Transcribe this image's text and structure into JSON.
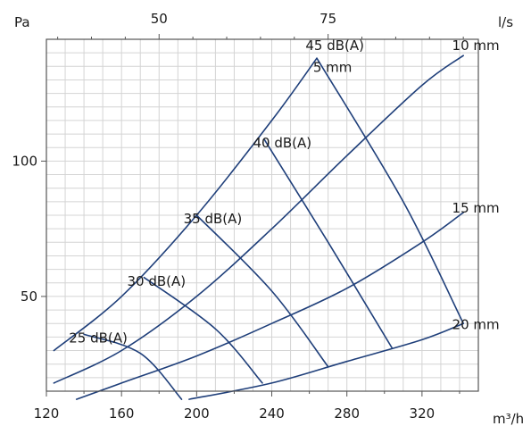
{
  "chart_data": {
    "type": "line",
    "title": "",
    "xlabel": "m³/h",
    "ylabel": "Pa",
    "x2label": "l/s",
    "x_range": [
      120,
      350
    ],
    "y_range": [
      15,
      145
    ],
    "x_ticks": [
      120,
      160,
      200,
      240,
      280,
      320
    ],
    "y_ticks": [
      50,
      100
    ],
    "x2_ticks": [
      50,
      75
    ],
    "grid": true,
    "line_color": "#1f3f7a",
    "pressure_curves": [
      {
        "name": "5 mm",
        "points": [
          [
            124,
            30
          ],
          [
            160,
            50
          ],
          [
            200,
            80
          ],
          [
            240,
            115
          ],
          [
            264,
            138
          ]
        ]
      },
      {
        "name": "10 mm",
        "points": [
          [
            124,
            18
          ],
          [
            160,
            30
          ],
          [
            200,
            50
          ],
          [
            240,
            75
          ],
          [
            280,
            102
          ],
          [
            320,
            128
          ],
          [
            342,
            139
          ]
        ]
      },
      {
        "name": "15 mm",
        "points": [
          [
            136,
            12
          ],
          [
            160,
            18
          ],
          [
            200,
            28
          ],
          [
            240,
            40
          ],
          [
            280,
            53
          ],
          [
            320,
            70
          ],
          [
            342,
            81
          ]
        ]
      },
      {
        "name": "20 mm",
        "points": [
          [
            196,
            12
          ],
          [
            240,
            18
          ],
          [
            280,
            26
          ],
          [
            320,
            34
          ],
          [
            342,
            40
          ]
        ]
      }
    ],
    "sound_curves": [
      {
        "name": "25 dB(A)",
        "points": [
          [
            140,
            36
          ],
          [
            170,
            29
          ],
          [
            192,
            12
          ]
        ]
      },
      {
        "name": "30 dB(A)",
        "points": [
          [
            172,
            57
          ],
          [
            210,
            38
          ],
          [
            235,
            18
          ]
        ]
      },
      {
        "name": "35 dB(A)",
        "points": [
          [
            200,
            80
          ],
          [
            240,
            52
          ],
          [
            270,
            24
          ]
        ]
      },
      {
        "name": "40 dB(A)",
        "points": [
          [
            236,
            108
          ],
          [
            270,
            70
          ],
          [
            304,
            31
          ]
        ]
      },
      {
        "name": "45 dB(A)",
        "points": [
          [
            264,
            138
          ],
          [
            310,
            85
          ],
          [
            342,
            40
          ]
        ]
      }
    ],
    "label_anchors": {
      "45 dB(A)": [
        258,
        141
      ],
      "5 mm": [
        262,
        133
      ],
      "10 mm": [
        336,
        141
      ],
      "40 dB(A)": [
        230,
        105
      ],
      "35 dB(A)": [
        193,
        77
      ],
      "15 mm": [
        336,
        81
      ],
      "30 dB(A)": [
        163,
        54
      ],
      "25 dB(A)": [
        132,
        33
      ],
      "20 mm": [
        336,
        38
      ]
    }
  }
}
